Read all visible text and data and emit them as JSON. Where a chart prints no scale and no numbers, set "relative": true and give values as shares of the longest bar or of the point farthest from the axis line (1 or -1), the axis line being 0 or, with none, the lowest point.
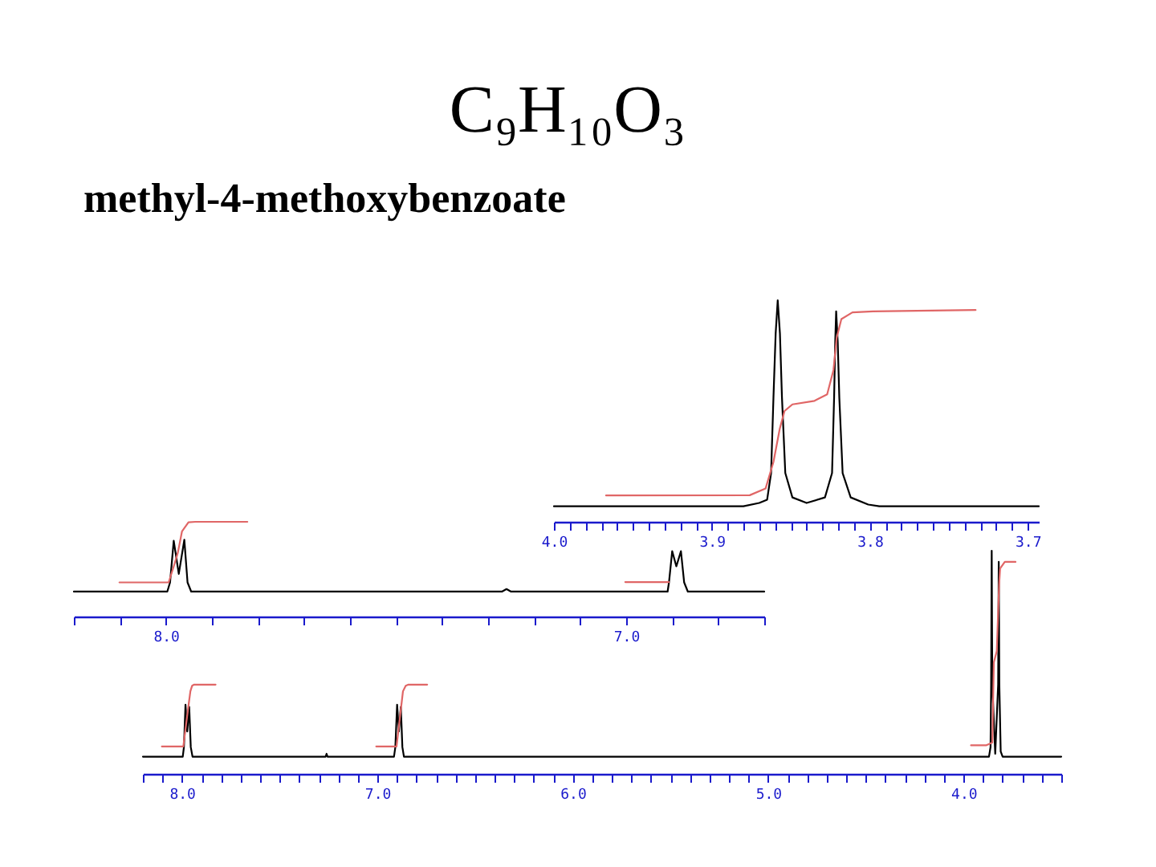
{
  "chart_data": [
    {
      "type": "line",
      "title": "C₉H₁₀O₃",
      "subtitle": "methyl-4-methoxybenzoate",
      "relative": true,
      "xlim": [
        4.0,
        3.693
      ],
      "xticks": [
        {
          "value": 4.0,
          "label": "4.0"
        },
        {
          "value": 3.99,
          "label": null
        },
        {
          "value": 3.98,
          "label": null
        },
        {
          "value": 3.97,
          "label": null
        },
        {
          "value": 3.96,
          "label": null
        },
        {
          "value": 3.95,
          "label": null
        },
        {
          "value": 3.94,
          "label": null
        },
        {
          "value": 3.93,
          "label": null
        },
        {
          "value": 3.92,
          "label": null
        },
        {
          "value": 3.91,
          "label": null
        },
        {
          "value": 3.9,
          "label": "3.9"
        },
        {
          "value": 3.89,
          "label": null
        },
        {
          "value": 3.88,
          "label": null
        },
        {
          "value": 3.87,
          "label": null
        },
        {
          "value": 3.86,
          "label": null
        },
        {
          "value": 3.85,
          "label": null
        },
        {
          "value": 3.84,
          "label": null
        },
        {
          "value": 3.83,
          "label": null
        },
        {
          "value": 3.82,
          "label": null
        },
        {
          "value": 3.81,
          "label": null
        },
        {
          "value": 3.8,
          "label": "3.8"
        },
        {
          "value": 3.79,
          "label": null
        },
        {
          "value": 3.78,
          "label": null
        },
        {
          "value": 3.77,
          "label": null
        },
        {
          "value": 3.76,
          "label": null
        },
        {
          "value": 3.75,
          "label": null
        },
        {
          "value": 3.74,
          "label": null
        },
        {
          "value": 3.73,
          "label": null
        },
        {
          "value": 3.72,
          "label": null
        },
        {
          "value": 3.71,
          "label": null
        },
        {
          "value": 3.7,
          "label": "3.7"
        }
      ],
      "series": [
        {
          "color": "#000000",
          "x": [
            4.0,
            3.88,
            3.87,
            3.865,
            3.8625,
            3.861,
            3.8596,
            3.8583,
            3.8569,
            3.8556,
            3.8535,
            3.849,
            3.84,
            3.8284,
            3.8239,
            3.8226,
            3.8219,
            3.8213,
            3.8203,
            3.8193,
            3.8172,
            3.8121,
            3.801,
            3.794,
            3.693
          ],
          "values": [
            0.07,
            0.07,
            0.085,
            0.1,
            0.22,
            0.56,
            0.85,
            1.0,
            0.85,
            0.56,
            0.22,
            0.11,
            0.085,
            0.11,
            0.22,
            0.56,
            0.81,
            0.95,
            0.81,
            0.56,
            0.22,
            0.11,
            0.078,
            0.07,
            0.07
          ]
        },
        {
          "color": "#e06666",
          "x": [
            3.967,
            3.876,
            3.866,
            3.861,
            3.857,
            3.854,
            3.849,
            3.835,
            3.827,
            3.823,
            3.821,
            3.818,
            3.811,
            3.798,
            3.733
          ],
          "values": [
            0.119,
            0.12,
            0.15,
            0.27,
            0.42,
            0.5,
            0.53,
            0.546,
            0.575,
            0.685,
            0.83,
            0.915,
            0.945,
            0.95,
            0.956
          ]
        }
      ]
    },
    {
      "type": "line",
      "relative": true,
      "xlim": [
        8.2,
        6.7
      ],
      "xticks": [
        {
          "value": 8.2,
          "label": null
        },
        {
          "value": 8.1,
          "label": null
        },
        {
          "value": 8.0,
          "label": "8.0"
        },
        {
          "value": 7.9,
          "label": null
        },
        {
          "value": 7.8,
          "label": null
        },
        {
          "value": 7.7,
          "label": null
        },
        {
          "value": 7.6,
          "label": null
        },
        {
          "value": 7.5,
          "label": null
        },
        {
          "value": 7.4,
          "label": null
        },
        {
          "value": 7.3,
          "label": null
        },
        {
          "value": 7.2,
          "label": null
        },
        {
          "value": 7.1,
          "label": null
        },
        {
          "value": 7.0,
          "label": "7.0"
        },
        {
          "value": 6.9,
          "label": null
        },
        {
          "value": 6.8,
          "label": null
        },
        {
          "value": 6.7,
          "label": null
        }
      ],
      "series": [
        {
          "color": "#000000",
          "x": [
            8.2,
            7.997,
            7.991,
            7.983,
            7.972,
            7.96,
            7.953,
            7.945,
            7.27,
            7.26,
            7.25,
            6.91,
            6.907,
            6.9,
            6.891,
            6.881,
            6.874,
            6.866,
            6.7
          ],
          "values": [
            0.263,
            0.263,
            0.36,
            0.8,
            0.45,
            0.81,
            0.36,
            0.263,
            0.263,
            0.29,
            0.263,
            0.263,
            0.36,
            0.69,
            0.53,
            0.69,
            0.36,
            0.263,
            0.263
          ]
        },
        {
          "color": "#e06666",
          "x": [
            8.101,
            7.994,
            7.983,
            7.974,
            7.965,
            7.951,
            7.936,
            7.823
          ],
          "values": [
            0.36,
            0.36,
            0.53,
            0.675,
            0.9,
            0.995,
            1.0,
            1.0
          ]
        },
        {
          "color": "#e06666",
          "x": [
            7.002,
            6.907
          ],
          "values": [
            0.364,
            0.364
          ]
        }
      ]
    },
    {
      "type": "line",
      "relative": true,
      "xlim": [
        8.2,
        3.5
      ],
      "xticks": [
        {
          "value": 8.2,
          "label": null
        },
        {
          "value": 8.1,
          "label": null
        },
        {
          "value": 8.0,
          "label": "8.0"
        },
        {
          "value": 7.9,
          "label": null
        },
        {
          "value": 7.8,
          "label": null
        },
        {
          "value": 7.7,
          "label": null
        },
        {
          "value": 7.6,
          "label": null
        },
        {
          "value": 7.5,
          "label": null
        },
        {
          "value": 7.4,
          "label": null
        },
        {
          "value": 7.3,
          "label": null
        },
        {
          "value": 7.2,
          "label": null
        },
        {
          "value": 7.1,
          "label": null
        },
        {
          "value": 7.0,
          "label": "7.0"
        },
        {
          "value": 6.9,
          "label": null
        },
        {
          "value": 6.8,
          "label": null
        },
        {
          "value": 6.7,
          "label": null
        },
        {
          "value": 6.6,
          "label": null
        },
        {
          "value": 6.5,
          "label": null
        },
        {
          "value": 6.4,
          "label": null
        },
        {
          "value": 6.3,
          "label": null
        },
        {
          "value": 6.2,
          "label": null
        },
        {
          "value": 6.1,
          "label": null
        },
        {
          "value": 6.0,
          "label": "6.0"
        },
        {
          "value": 5.9,
          "label": null
        },
        {
          "value": 5.8,
          "label": null
        },
        {
          "value": 5.7,
          "label": null
        },
        {
          "value": 5.6,
          "label": null
        },
        {
          "value": 5.5,
          "label": null
        },
        {
          "value": 5.4,
          "label": null
        },
        {
          "value": 5.3,
          "label": null
        },
        {
          "value": 5.2,
          "label": null
        },
        {
          "value": 5.1,
          "label": null
        },
        {
          "value": 5.0,
          "label": "5.0"
        },
        {
          "value": 4.9,
          "label": null
        },
        {
          "value": 4.8,
          "label": null
        },
        {
          "value": 4.7,
          "label": null
        },
        {
          "value": 4.6,
          "label": null
        },
        {
          "value": 4.5,
          "label": null
        },
        {
          "value": 4.4,
          "label": null
        },
        {
          "value": 4.3,
          "label": null
        },
        {
          "value": 4.2,
          "label": null
        },
        {
          "value": 4.1,
          "label": null
        },
        {
          "value": 4.0,
          "label": "4.0"
        },
        {
          "value": 3.9,
          "label": null
        },
        {
          "value": 3.8,
          "label": null
        },
        {
          "value": 3.7,
          "label": null
        },
        {
          "value": 3.6,
          "label": null
        },
        {
          "value": 3.5,
          "label": null
        }
      ],
      "series": [
        {
          "color": "#000000",
          "x": [
            8.2,
            7.996,
            7.99,
            7.982,
            7.973,
            7.963,
            7.955,
            7.946,
            7.265,
            7.26,
            7.255,
            6.915,
            6.908,
            6.899,
            6.89,
            6.88,
            6.872,
            6.864,
            3.87,
            3.862,
            3.859,
            3.856,
            3.853,
            3.838,
            3.823,
            3.82,
            3.817,
            3.81,
            3.8,
            3.5
          ],
          "values": [
            0.077,
            0.077,
            0.12,
            0.31,
            0.19,
            0.3,
            0.12,
            0.077,
            0.077,
            0.09,
            0.077,
            0.077,
            0.12,
            0.31,
            0.19,
            0.3,
            0.12,
            0.077,
            0.077,
            0.12,
            0.4,
            1.0,
            0.4,
            0.09,
            0.4,
            0.95,
            0.4,
            0.1,
            0.077,
            0.077
          ]
        },
        {
          "color": "#e06666",
          "x": [
            8.103,
            7.993,
            7.975,
            7.957,
            7.948,
            7.938,
            7.828
          ],
          "values": [
            0.123,
            0.123,
            0.25,
            0.37,
            0.395,
            0.4,
            0.4
          ]
        },
        {
          "color": "#e06666",
          "x": [
            7.006,
            6.902,
            6.885,
            6.869,
            6.855,
            6.841,
            6.745
          ],
          "values": [
            0.123,
            0.123,
            0.25,
            0.37,
            0.395,
            0.4,
            0.4
          ]
        },
        {
          "color": "#e06666",
          "x": [
            3.962,
            3.885,
            3.853,
            3.845,
            3.83,
            3.818,
            3.813,
            3.789,
            3.734
          ],
          "values": [
            0.128,
            0.128,
            0.14,
            0.5,
            0.55,
            0.85,
            0.92,
            0.95,
            0.95
          ]
        }
      ]
    }
  ]
}
